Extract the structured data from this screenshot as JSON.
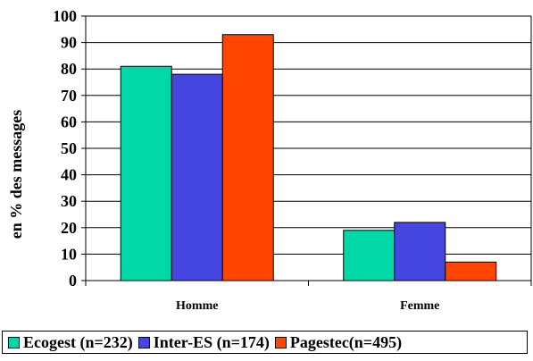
{
  "chart_data": {
    "type": "bar",
    "title": "",
    "xlabel": "",
    "ylabel": "en % des messages",
    "ylim": [
      0,
      100
    ],
    "yticks": [
      0,
      10,
      20,
      30,
      40,
      50,
      60,
      70,
      80,
      90,
      100
    ],
    "categories": [
      "Homme",
      "Femme"
    ],
    "series": [
      {
        "name": "Ecogest (n=232)",
        "values": [
          81,
          19
        ],
        "color": "#00D8A8"
      },
      {
        "name": "Inter-ES (n=174)",
        "values": [
          78,
          22
        ],
        "color": "#4545E0"
      },
      {
        "name": "Pagestec(n=495)",
        "values": [
          93,
          7
        ],
        "color": "#FF4500"
      }
    ],
    "grid": true,
    "legend_position": "bottom"
  }
}
